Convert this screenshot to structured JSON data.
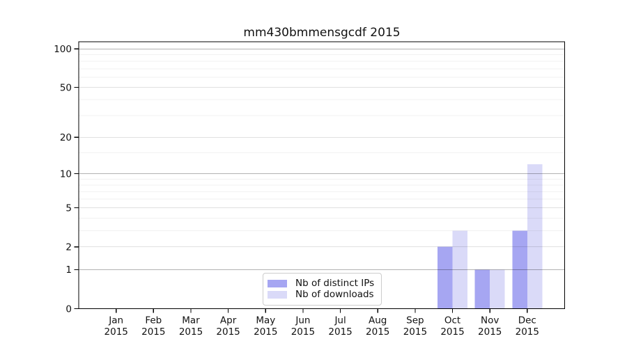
{
  "chart_data": {
    "type": "bar",
    "title": "mm430bmmensgcdf 2015",
    "categories": [
      "Jan 2015",
      "Feb 2015",
      "Mar 2015",
      "Apr 2015",
      "May 2015",
      "Jun 2015",
      "Jul 2015",
      "Aug 2015",
      "Sep 2015",
      "Oct 2015",
      "Nov 2015",
      "Dec 2015"
    ],
    "series": [
      {
        "name": "Nb of distinct IPs",
        "color": "#a6a6f2",
        "values": [
          0,
          0,
          0,
          0,
          0,
          0,
          0,
          0,
          0,
          2,
          1,
          3
        ]
      },
      {
        "name": "Nb of downloads",
        "color": "#dadaf8",
        "values": [
          0,
          0,
          0,
          0,
          0,
          0,
          0,
          0,
          0,
          3,
          1,
          12
        ]
      }
    ],
    "yscale": "log1p",
    "ylim": [
      0,
      100
    ],
    "y_ticks": [
      0,
      1,
      2,
      5,
      10,
      20,
      50,
      100
    ],
    "y_grid_strong": [
      1,
      10,
      100
    ],
    "y_grid_mid": [
      2,
      5,
      20,
      50
    ],
    "y_grid_minor": [
      3,
      4,
      6,
      7,
      8,
      9,
      15,
      30,
      40,
      60,
      70,
      80,
      90
    ],
    "xlabel": "",
    "ylabel": "",
    "grid": true,
    "legend_position": "lower center"
  },
  "colors": {
    "grid_strong": "rgba(0,0,0,0.30)",
    "grid_mid": "rgba(0,0,0,0.12)",
    "grid_minor": "rgba(0,0,0,0.055)",
    "spine": "#000000",
    "tick": "#000000",
    "text": "#111111",
    "legend_border": "#cccccc",
    "background": "#ffffff"
  }
}
